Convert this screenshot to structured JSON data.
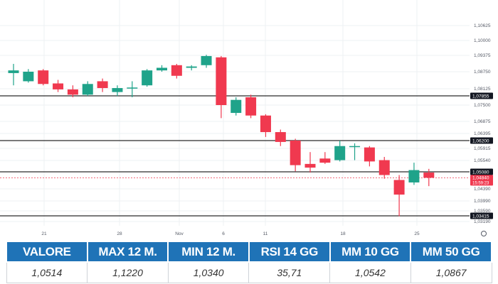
{
  "chart_data": {
    "type": "candlestick",
    "y_ticks": [
      "1,10625",
      "1,10000",
      "1,09375",
      "1,08750",
      "1,08125",
      "1,07500",
      "1,06875",
      "1,06395",
      "1,05915",
      "1,05540",
      "1,04390",
      "1,03990",
      "1,03590",
      "1,03190"
    ],
    "x_ticks": [
      "21",
      "28",
      "Nov",
      "6",
      "11",
      "18",
      "25"
    ],
    "horizontal_levels": [
      {
        "value": 1.07855,
        "label": "1,07855"
      },
      {
        "value": 1.062,
        "label": "1,06200"
      },
      {
        "value": 1.0508,
        "label": "1,05080"
      },
      {
        "value": 1.03415,
        "label": "1,03415"
      }
    ],
    "last_price": {
      "value": 1.0484,
      "label": "1,04840",
      "countdown": "15:59:23"
    },
    "candles": [
      {
        "o": 1.087,
        "h": 1.0905,
        "l": 1.0825,
        "c": 1.088
      },
      {
        "o": 1.084,
        "h": 1.0885,
        "l": 1.0835,
        "c": 1.0875
      },
      {
        "o": 1.088,
        "h": 1.0885,
        "l": 1.0825,
        "c": 1.083
      },
      {
        "o": 1.0832,
        "h": 1.0845,
        "l": 1.08,
        "c": 1.081
      },
      {
        "o": 1.081,
        "h": 1.0825,
        "l": 1.078,
        "c": 1.079
      },
      {
        "o": 1.079,
        "h": 1.084,
        "l": 1.0785,
        "c": 1.083
      },
      {
        "o": 1.084,
        "h": 1.085,
        "l": 1.08,
        "c": 1.0815
      },
      {
        "o": 1.08,
        "h": 1.0825,
        "l": 1.0785,
        "c": 1.0815
      },
      {
        "o": 1.0815,
        "h": 1.084,
        "l": 1.078,
        "c": 1.0817
      },
      {
        "o": 1.0825,
        "h": 1.0885,
        "l": 1.082,
        "c": 1.088
      },
      {
        "o": 1.088,
        "h": 1.09,
        "l": 1.0875,
        "c": 1.089
      },
      {
        "o": 1.09,
        "h": 1.0905,
        "l": 1.085,
        "c": 1.086
      },
      {
        "o": 1.089,
        "h": 1.09,
        "l": 1.088,
        "c": 1.0895
      },
      {
        "o": 1.09,
        "h": 1.094,
        "l": 1.089,
        "c": 1.0935
      },
      {
        "o": 1.093,
        "h": 1.0935,
        "l": 1.07,
        "c": 1.075
      },
      {
        "o": 1.072,
        "h": 1.078,
        "l": 1.071,
        "c": 1.077
      },
      {
        "o": 1.078,
        "h": 1.079,
        "l": 1.07,
        "c": 1.071
      },
      {
        "o": 1.071,
        "h": 1.0715,
        "l": 1.063,
        "c": 1.0645
      },
      {
        "o": 1.0645,
        "h": 1.0655,
        "l": 1.06,
        "c": 1.0615
      },
      {
        "o": 1.062,
        "h": 1.0625,
        "l": 1.051,
        "c": 1.0535
      },
      {
        "o": 1.054,
        "h": 1.058,
        "l": 1.0505,
        "c": 1.0525
      },
      {
        "o": 1.056,
        "h": 1.058,
        "l": 1.054,
        "c": 1.0545
      },
      {
        "o": 1.0555,
        "h": 1.062,
        "l": 1.055,
        "c": 1.06
      },
      {
        "o": 1.06,
        "h": 1.061,
        "l": 1.0555,
        "c": 1.06
      },
      {
        "o": 1.0595,
        "h": 1.06,
        "l": 1.053,
        "c": 1.055
      },
      {
        "o": 1.0555,
        "h": 1.0565,
        "l": 1.048,
        "c": 1.0495
      },
      {
        "o": 1.0475,
        "h": 1.0495,
        "l": 1.034,
        "c": 1.042
      },
      {
        "o": 1.0465,
        "h": 1.0545,
        "l": 1.0455,
        "c": 1.0515
      },
      {
        "o": 1.0505,
        "h": 1.052,
        "l": 1.045,
        "c": 1.0484
      }
    ],
    "colors": {
      "up": "#1fa38a",
      "down": "#f0394f",
      "level_line": "#2b2b2b",
      "grid": "#eef0f3"
    }
  },
  "table": {
    "headers": [
      "VALORE",
      "MAX 12 M.",
      "MIN 12 M.",
      "RSI 14 GG",
      "MM 10 GG",
      "MM 50 GG"
    ],
    "values": [
      "1,0514",
      "1,1220",
      "1,0340",
      "35,71",
      "1,0542",
      "1,0867"
    ],
    "header_color": "#1f73b7"
  }
}
